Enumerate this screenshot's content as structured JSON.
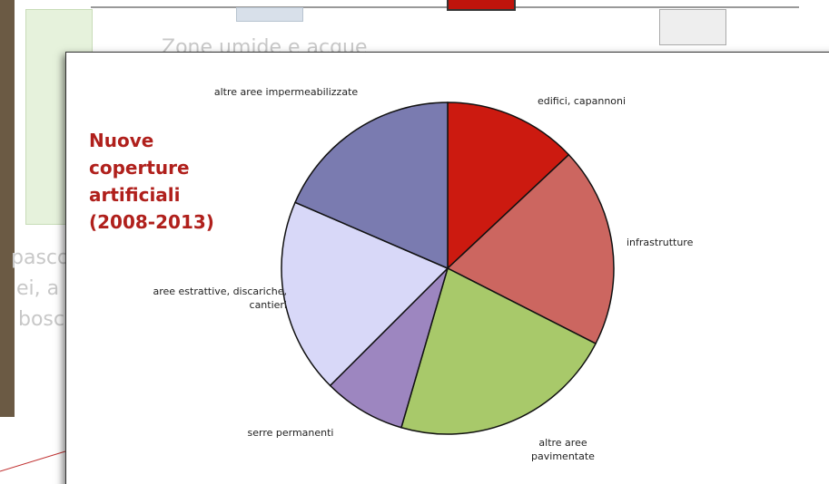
{
  "background_texts": [
    "Zone umide e acque",
    "pasco",
    "ei, a",
    "bosc"
  ],
  "chart_data": {
    "type": "pie",
    "title": "Nuove coperture artificiali (2008-2013)",
    "categories": [
      "edifici, capannoni",
      "infrastrutture",
      "altre aree pavimentate",
      "serre permanenti",
      "aree estrattive, discariche, cantieri",
      "altre aree impermeabilizzate"
    ],
    "values": [
      13,
      19.5,
      22,
      8,
      19,
      18.5
    ],
    "colors": [
      "#cc1a10",
      "#cc6660",
      "#a8c96a",
      "#9d86c0",
      "#d8d8f8",
      "#7a7bb0"
    ]
  }
}
